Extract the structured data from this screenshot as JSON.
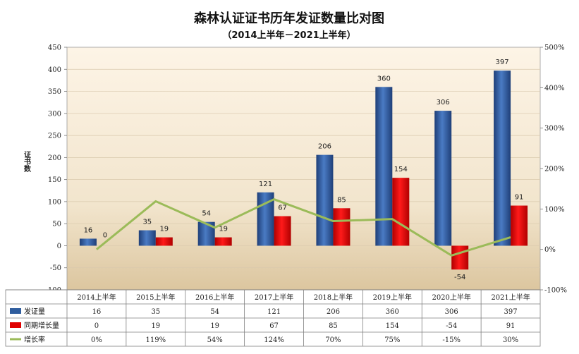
{
  "chart_data": {
    "type": "bar",
    "title": "森林认证证书历年发证数量比对图",
    "subtitle": "（2014上半年－2021上半年）",
    "ylabel": "证书数",
    "categories": [
      "2014上半年",
      "2015上半年",
      "2016上半年",
      "2017上半年",
      "2018上半年",
      "2019上半年",
      "2020上半年",
      "2021上半年"
    ],
    "ylim": [
      -100,
      450
    ],
    "yticks": [
      450,
      400,
      350,
      300,
      250,
      200,
      150,
      100,
      50,
      0,
      -50,
      -100
    ],
    "y2lim": [
      -100,
      500
    ],
    "y2ticks": [
      "500%",
      "400%",
      "300%",
      "200%",
      "100%",
      "0%",
      "-100%"
    ],
    "y2tick_values": [
      500,
      400,
      300,
      200,
      100,
      0,
      -100
    ],
    "series": [
      {
        "name": "发证量",
        "type": "bar",
        "color": "#2f5d9e",
        "values": [
          16,
          35,
          54,
          121,
          206,
          360,
          306,
          397
        ],
        "labels": [
          "16",
          "35",
          "54",
          "121",
          "206",
          "360",
          "306",
          "397"
        ]
      },
      {
        "name": "同期增长量",
        "type": "bar",
        "color": "#e00000",
        "values": [
          0,
          19,
          19,
          67,
          85,
          154,
          -54,
          91
        ],
        "labels": [
          "0",
          "19",
          "19",
          "67",
          "85",
          "154",
          "-54",
          "91"
        ]
      },
      {
        "name": "增长率",
        "type": "line",
        "axis": "right",
        "color": "#9bbb59",
        "values": [
          0,
          119,
          54,
          124,
          70,
          75,
          -15,
          30
        ],
        "labels": [
          "0%",
          "119%",
          "54%",
          "124%",
          "70%",
          "75%",
          "-15%",
          "30%"
        ]
      }
    ]
  }
}
